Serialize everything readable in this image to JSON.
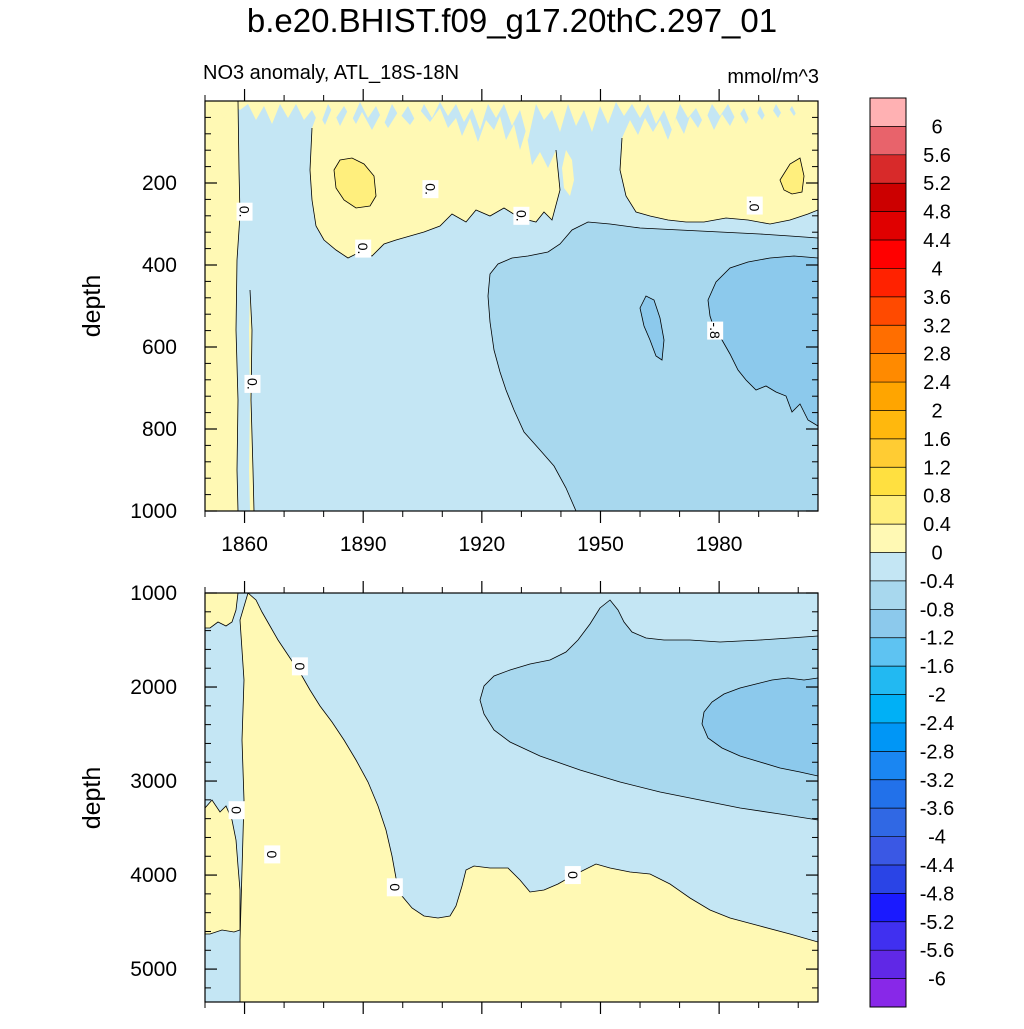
{
  "figure": {
    "title": "b.e20.BHIST.f09_g17.20thC.297_01",
    "subtitle_left": "NO3 anomaly, ATL_18S-18N",
    "subtitle_right": "mmol/m^3"
  },
  "chart_data": [
    {
      "type": "heatmap",
      "name": "upper-panel",
      "ylabel": "depth",
      "xlim": [
        1850,
        2005
      ],
      "ylim": [
        0,
        1000
      ],
      "y_inverted": true,
      "x_ticks": [
        1860,
        1890,
        1920,
        1950,
        1980
      ],
      "x_tick_labels_shown": true,
      "y_ticks": [
        200,
        400,
        600,
        800,
        1000
      ],
      "contour_labels": [
        {
          "text": "0.",
          "x": 1860,
          "y": 270
        },
        {
          "text": "0.",
          "x": 1862,
          "y": 690
        },
        {
          "text": "0.",
          "x": 1890,
          "y": 360
        },
        {
          "text": "0.",
          "x": 1907,
          "y": 215
        },
        {
          "text": "0.",
          "x": 1930,
          "y": 280
        },
        {
          "text": ".0",
          "x": 1989,
          "y": 255
        },
        {
          "text": "-.8",
          "x": 1979,
          "y": 560
        }
      ],
      "regions": [
        {
          "value_range": [
            -0.4,
            0
          ],
          "desc": "background"
        },
        {
          "value_range": [
            0,
            0.4
          ],
          "desc": "thin column near 1850-1863 down to 1000 m"
        },
        {
          "value_range": [
            0,
            0.4
          ],
          "desc": "near-surface patches 1877-1935 and 1965-2005 above ~350 m"
        },
        {
          "value_range": [
            0.4,
            0.8
          ],
          "desc": "small patches near 1884-1887 and 1993-1995 at ~200 m"
        },
        {
          "value_range": [
            -0.8,
            -0.4
          ],
          "desc": "1921-2005 between ~350 m and 1000 m"
        },
        {
          "value_range": [
            -1.2,
            -0.8
          ],
          "desc": "1978-2005 between ~400 m and ~820 m, small patch 1959-1967 ~550 m"
        }
      ]
    },
    {
      "type": "heatmap",
      "name": "lower-panel",
      "ylabel": "depth",
      "xlim": [
        1850,
        2005
      ],
      "ylim": [
        1000,
        5350
      ],
      "y_inverted": true,
      "x_ticks": [
        1860,
        1890,
        1920,
        1950,
        1980
      ],
      "x_tick_labels_shown": false,
      "y_ticks": [
        1000,
        2000,
        3000,
        4000,
        5000
      ],
      "contour_labels": [
        {
          "text": "0",
          "x": 1874,
          "y": 1780
        },
        {
          "text": "0",
          "x": 1858,
          "y": 3310
        },
        {
          "text": "0",
          "x": 1867,
          "y": 3780
        },
        {
          "text": "0",
          "x": 1898,
          "y": 4130
        },
        {
          "text": "0",
          "x": 1943,
          "y": 4000
        }
      ],
      "regions": [
        {
          "value_range": [
            -0.4,
            0
          ],
          "desc": "background"
        },
        {
          "value_range": [
            0,
            0.4
          ],
          "desc": "wedge widening from 1860 at 1000 m to the whole bottom below ~4000-4700 m"
        },
        {
          "value_range": [
            0,
            0.4
          ],
          "desc": "strip 1850-1858 from ~3300 m to ~4600 m"
        },
        {
          "value_range": [
            -0.8,
            -0.4
          ],
          "desc": "1920-2005 from ~1900 m to ~3600 m, thinning to the left"
        },
        {
          "value_range": [
            -1.2,
            -0.8
          ],
          "desc": "1980-2005 from ~1900 m to ~2800 m"
        }
      ]
    }
  ],
  "colorbar": {
    "levels": [
      "6",
      "5.6",
      "5.2",
      "4.8",
      "4.4",
      "4",
      "3.6",
      "3.2",
      "2.8",
      "2.4",
      "2",
      "1.6",
      "1.2",
      "0.8",
      "0.4",
      "0",
      "-0.4",
      "-0.8",
      "-1.2",
      "-1.6",
      "-2",
      "-2.4",
      "-2.8",
      "-3.2",
      "-3.6",
      "-4",
      "-4.4",
      "-4.8",
      "-5.2",
      "-5.6",
      "-6"
    ],
    "colors": [
      "#ffb1b3",
      "#e8636b",
      "#d82a2a",
      "#cc0000",
      "#e00000",
      "#ff0000",
      "#ff2200",
      "#ff4a00",
      "#ff6e00",
      "#ff8a00",
      "#ffa500",
      "#ffb80d",
      "#ffcc33",
      "#ffe040",
      "#ffef7d",
      "#fff9b4",
      "#c4e6f4",
      "#a8d8ee",
      "#8cc9ec",
      "#5ec3f2",
      "#22b9f2",
      "#00b0f6",
      "#0096f6",
      "#1a86f2",
      "#2271ea",
      "#3068e4",
      "#3a58e4",
      "#2a44e6",
      "#1a1aff",
      "#4030f0",
      "#6028e6",
      "#8828e8"
    ]
  }
}
